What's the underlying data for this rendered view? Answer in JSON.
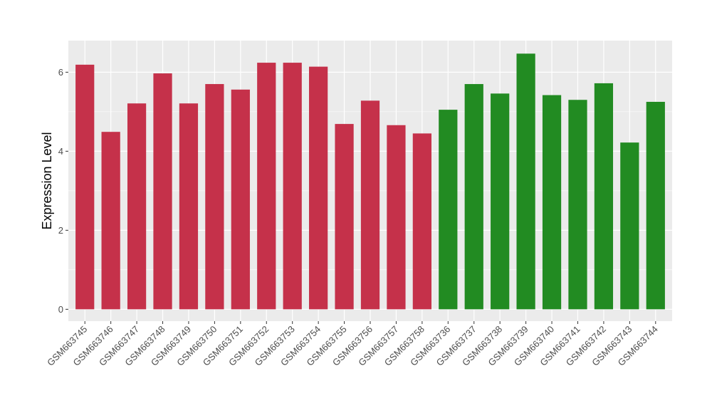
{
  "chart_data": {
    "type": "bar",
    "title": "",
    "xlabel": "",
    "ylabel": "Expression Level",
    "ylim": [
      -0.3,
      6.8
    ],
    "yticks": [
      0,
      2,
      4,
      6
    ],
    "grid": true,
    "legend": "none",
    "colors": {
      "group_a": "#c5314a",
      "group_b": "#228b22",
      "panel_bg": "#ebebeb",
      "grid": "#ffffff"
    },
    "categories": [
      "GSM663745",
      "GSM663746",
      "GSM663747",
      "GSM663748",
      "GSM663749",
      "GSM663750",
      "GSM663751",
      "GSM663752",
      "GSM663753",
      "GSM663754",
      "GSM663755",
      "GSM663756",
      "GSM663757",
      "GSM663758",
      "GSM663736",
      "GSM663737",
      "GSM663738",
      "GSM663739",
      "GSM663740",
      "GSM663741",
      "GSM663742",
      "GSM663743",
      "GSM663744"
    ],
    "values": [
      6.19,
      4.49,
      5.21,
      5.97,
      5.21,
      5.7,
      5.56,
      6.24,
      6.24,
      6.14,
      4.69,
      5.28,
      4.66,
      4.45,
      5.05,
      5.7,
      5.46,
      6.47,
      5.42,
      5.3,
      5.72,
      4.22,
      5.25
    ],
    "groups": [
      "a",
      "a",
      "a",
      "a",
      "a",
      "a",
      "a",
      "a",
      "a",
      "a",
      "a",
      "a",
      "a",
      "a",
      "b",
      "b",
      "b",
      "b",
      "b",
      "b",
      "b",
      "b",
      "b"
    ]
  }
}
